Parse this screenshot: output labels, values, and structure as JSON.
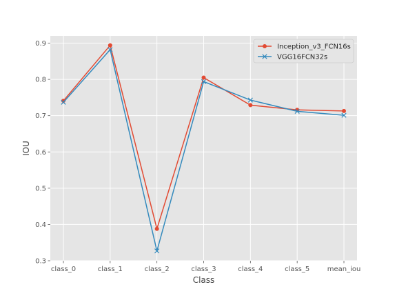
{
  "colors": {
    "plot_background": "#e5e5e5",
    "grid": "#ffffff",
    "series_0": "#e24a33",
    "series_1": "#348abd"
  },
  "chart_data": {
    "type": "line",
    "xlabel": "Class",
    "ylabel": "IOU",
    "categories": [
      "class_0",
      "class_1",
      "class_2",
      "class_3",
      "class_4",
      "class_5",
      "mean_iou"
    ],
    "ylim": [
      0.3,
      0.92
    ],
    "yticks": [
      0.3,
      0.4,
      0.5,
      0.6,
      0.7,
      0.8,
      0.9
    ],
    "grid": true,
    "legend_position": "top-right",
    "series": [
      {
        "name": "Inception_v3_FCN16s",
        "marker": "circle",
        "color": "#e24a33",
        "values": [
          0.741,
          0.894,
          0.388,
          0.805,
          0.729,
          0.716,
          0.713
        ]
      },
      {
        "name": "VGG16FCN32s",
        "marker": "x",
        "color": "#348abd",
        "values": [
          0.737,
          0.882,
          0.327,
          0.794,
          0.743,
          0.712,
          0.701
        ]
      }
    ]
  }
}
